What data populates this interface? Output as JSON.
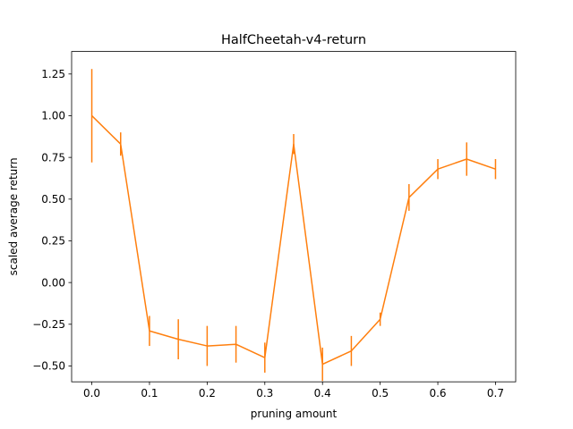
{
  "chart_data": {
    "type": "line",
    "title": "HalfCheetah-v4-return",
    "xlabel": "pruning amount",
    "ylabel": "scaled average return",
    "xlim": [
      -0.035,
      0.735
    ],
    "ylim": [
      -0.595,
      1.385
    ],
    "xticks": [
      0.0,
      0.1,
      0.2,
      0.3,
      0.4,
      0.5,
      0.6,
      0.7
    ],
    "xtick_labels": [
      "0.0",
      "0.1",
      "0.2",
      "0.3",
      "0.4",
      "0.5",
      "0.6",
      "0.7"
    ],
    "yticks": [
      -0.5,
      -0.25,
      0.0,
      0.25,
      0.5,
      0.75,
      1.0,
      1.25
    ],
    "ytick_labels": [
      "−0.50",
      "−0.25",
      "0.00",
      "0.25",
      "0.50",
      "0.75",
      "1.00",
      "1.25"
    ],
    "grid": false,
    "legend": "none",
    "series": [
      {
        "color": "#ff7f0e",
        "x": [
          0.0,
          0.05,
          0.1,
          0.15,
          0.2,
          0.25,
          0.3,
          0.35,
          0.4,
          0.45,
          0.5,
          0.55,
          0.6,
          0.65,
          0.7
        ],
        "y": [
          1.0,
          0.83,
          -0.29,
          -0.34,
          -0.38,
          -0.37,
          -0.45,
          0.83,
          -0.49,
          -0.41,
          -0.22,
          0.51,
          0.68,
          0.74,
          0.68
        ],
        "yerr": [
          0.28,
          0.07,
          0.09,
          0.12,
          0.12,
          0.11,
          0.09,
          0.06,
          0.1,
          0.09,
          0.04,
          0.08,
          0.06,
          0.1,
          0.06
        ]
      }
    ]
  }
}
